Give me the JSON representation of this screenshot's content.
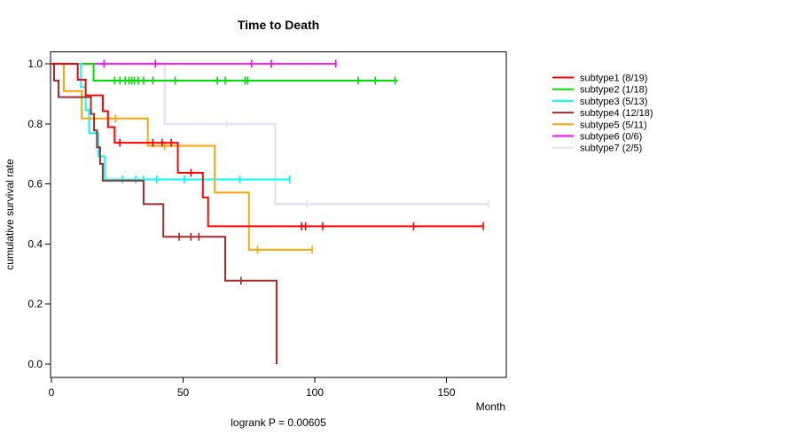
{
  "chart_data": {
    "type": "line",
    "subtype": "kaplan-meier-step",
    "title": "Time to Death",
    "xlabel": "Month",
    "ylabel": "cumulative survival rate",
    "footnote": "logrank P = 0.00605",
    "x_ticks": [
      0,
      50,
      100,
      150
    ],
    "y_ticks": [
      "0.0",
      "0.2",
      "0.4",
      "0.6",
      "0.8",
      "1.0"
    ],
    "xlim": [
      0,
      172
    ],
    "ylim": [
      0.0,
      1.0
    ],
    "grid": false,
    "legend_position": "right-outside",
    "series": [
      {
        "name": "subtype7",
        "label": "subtype7 (2/5)",
        "color": "#E4E4F6",
        "width": 2.6,
        "steps": [
          [
            0,
            1.0
          ],
          [
            43,
            0.8
          ],
          [
            85,
            0.533
          ]
        ],
        "end": 166,
        "censors": [
          66.5,
          97,
          166
        ]
      },
      {
        "name": "subtype6",
        "label": "subtype6 (0/6)",
        "color": "#FF00FF",
        "width": 1.8,
        "steps": [
          [
            0,
            1.0
          ]
        ],
        "end": 108,
        "censors": [
          20,
          39.5,
          76,
          83.5,
          108
        ]
      },
      {
        "name": "subtype2",
        "label": "subtype2 (1/18)",
        "color": "#00E000",
        "width": 2,
        "steps": [
          [
            0,
            1.0
          ],
          [
            16,
            0.944
          ]
        ],
        "end": 131.5,
        "censors": [
          24,
          26,
          28,
          29.5,
          30.5,
          31.5,
          33,
          35,
          38.5,
          47,
          63,
          66,
          73.5,
          74.5,
          116.5,
          123,
          130.5
        ]
      },
      {
        "name": "subtype3",
        "label": "subtype3 (5/13)",
        "color": "#00FFFF",
        "width": 2,
        "steps": [
          [
            0,
            1.0
          ],
          [
            11.2,
            0.923
          ],
          [
            13,
            0.846
          ],
          [
            14.3,
            0.769
          ],
          [
            17.8,
            0.692
          ],
          [
            20.3,
            0.615
          ]
        ],
        "end": 90.5,
        "censors": [
          27,
          32,
          35,
          40,
          50.5,
          71.5,
          90.5
        ]
      },
      {
        "name": "subtype5",
        "label": "subtype5 (5/11)",
        "color": "#FFA500",
        "width": 2,
        "steps": [
          [
            0,
            1.0
          ],
          [
            4.7,
            0.909
          ],
          [
            11.5,
            0.818
          ],
          [
            36.6,
            0.727
          ],
          [
            62,
            0.571
          ],
          [
            75,
            0.381
          ]
        ],
        "end": 99,
        "censors": [
          24.3,
          43,
          78.3,
          99
        ]
      },
      {
        "name": "subtype4",
        "label": "subtype4 (12/18)",
        "color": "#A52A2A",
        "width": 2,
        "steps": [
          [
            0,
            1.0
          ],
          [
            1,
            0.944
          ],
          [
            2.7,
            0.889
          ],
          [
            15,
            0.833
          ],
          [
            16.2,
            0.778
          ],
          [
            17.3,
            0.722
          ],
          [
            18.5,
            0.667
          ],
          [
            19.5,
            0.611
          ],
          [
            35,
            0.533
          ],
          [
            42.5,
            0.424
          ],
          [
            66,
            0.278
          ],
          [
            85.5,
            0.0
          ]
        ],
        "end": 85.5,
        "censors": [
          48.5,
          53,
          56,
          72
        ]
      },
      {
        "name": "subtype1",
        "label": "subtype1 (8/19)",
        "color": "#FF0000",
        "width": 2,
        "steps": [
          [
            0,
            1.0
          ],
          [
            10,
            0.947
          ],
          [
            13,
            0.895
          ],
          [
            19.5,
            0.842
          ],
          [
            21.5,
            0.789
          ],
          [
            24,
            0.737
          ],
          [
            48,
            0.637
          ],
          [
            57.5,
            0.555
          ],
          [
            59.5,
            0.459
          ]
        ],
        "end": 164,
        "censors": [
          26,
          38.5,
          42,
          45.5,
          53,
          95,
          96.5,
          103,
          137.5,
          164
        ]
      }
    ],
    "legend_order": [
      "subtype1",
      "subtype2",
      "subtype3",
      "subtype4",
      "subtype5",
      "subtype6",
      "subtype7"
    ]
  }
}
